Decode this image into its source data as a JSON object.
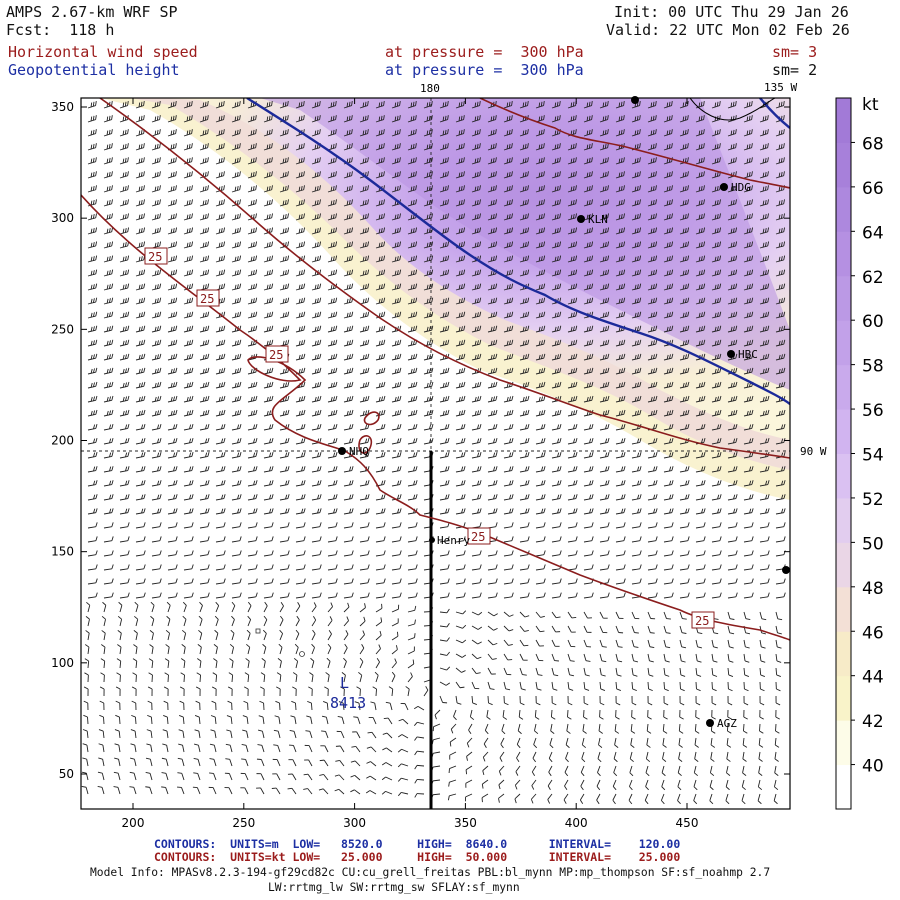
{
  "header": {
    "model": "AMPS 2.67-km WRF SP",
    "fcst_label": "Fcst:",
    "fcst_value": "118 h",
    "init": "Init: 00 UTC Thu 29 Jan 26",
    "valid": "Valid: 22 UTC Mon 02 Feb 26",
    "field1_name": "Horizontal wind speed",
    "field1_level": "at pressure =  300 hPa",
    "field1_sm": "sm= 3",
    "field2_name": "Geopotential height",
    "field2_level": "at pressure =  300 hPa",
    "field2_sm": "sm= 2"
  },
  "map": {
    "lon_labels": [
      "180",
      "135 W",
      "90 W"
    ],
    "stations": [
      "HDG",
      "KLN",
      "HBC",
      "NHQ",
      "Henry",
      "AGZ"
    ],
    "wind_contour_label": "25",
    "height_label": "8413",
    "low_symbol": "L",
    "x_ticks": [
      200,
      250,
      300,
      350,
      400,
      450
    ],
    "y_ticks": [
      50,
      100,
      150,
      200,
      250,
      300,
      350
    ]
  },
  "colorbar": {
    "unit": "kt",
    "levels": [
      40,
      42,
      44,
      46,
      48,
      50,
      52,
      54,
      56,
      58,
      60,
      62,
      64,
      66,
      68
    ],
    "colors": [
      "#ffffff",
      "#fdfce8",
      "#f9f3c9",
      "#f7ebc8",
      "#f3e0d6",
      "#ead6e6",
      "#e2cdef",
      "#dac1f2",
      "#d1b4f0",
      "#c9aaec",
      "#c2a1e9",
      "#bb99e5",
      "#b590e2",
      "#ad88de",
      "#a780da",
      "#a27ad7"
    ]
  },
  "footer": {
    "contours_label": "CONTOURS:",
    "c1_units": "UNITS=m",
    "c1_low": "LOW=   8520.0",
    "c1_high": "HIGH=  8640.0",
    "c1_interval": "INTERVAL=    120.00",
    "c2_units": "UNITS=kt",
    "c2_low": "LOW=   25.000",
    "c2_high": "HIGH=  50.000",
    "c2_interval": "INTERVAL=    25.000",
    "model_info_1": "Model Info: MPASv8.2.3-194-gf29cd82c CU:cu_grell_freitas PBL:bl_mynn MP:mp_thompson SF:sf_noahmp 2.7",
    "model_info_2": "LW:rrtmg_lw SW:rrtmg_sw SFLAY:sf_mynn"
  }
}
